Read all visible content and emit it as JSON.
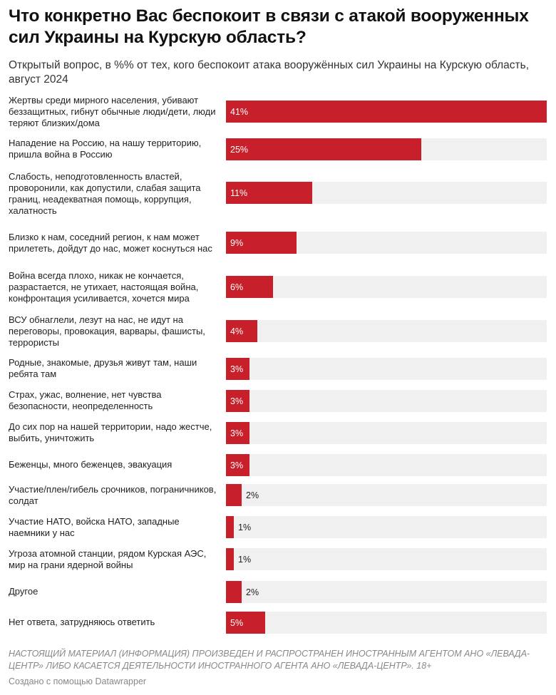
{
  "title": "Что конкретно Вас беспокоит в связи с атакой вооруженных сил Украины на Курскую область?",
  "subtitle": "Открытый вопрос, в %% от тех, кого беспокоит атака вооружённых сил Украины на Курскую область, август 2024",
  "colors": {
    "bar": "#c8202a",
    "track": "#f0f0f0"
  },
  "chart_data": {
    "type": "bar",
    "orientation": "horizontal",
    "unit": "%",
    "xlim": [
      0,
      41
    ],
    "categories": [
      "Жертвы среди мирного населения, убивают беззащитных, гибнут обычные люди/дети, люди теряют близких/дома",
      "Нападение на Россию, на нашу территорию, пришла война в Россию",
      "Слабость, неподготовленность властей, проворонили, как допустили, слабая защита границ, неадекватная помощь, коррупция, халатность",
      "Близко к нам, соседний регион, к нам может прилететь, дойдут до нас, может коснуться нас",
      "Война всегда плохо, никак не кончается, разрастается, не утихает, настоящая война, конфронтация усиливается, хочется мира",
      "ВСУ обнаглели, лезут на нас, не идут на переговоры, провокация, варвары, фашисты, террористы",
      "Родные, знакомые, друзья живут там, наши ребята там",
      "Страх, ужас, волнение, нет чувства безопасности, неопределенность",
      "До сих пор на нашей территории, надо жестче, выбить, уничтожить",
      "Беженцы, много беженцев, эвакуация",
      "Участие/плен/гибель срочников, пограничников, солдат",
      "Участие НАТО, войска НАТО, западные наемники у нас",
      "Угроза атомной станции, рядом Курская АЭС, мир на грани ядерной войны",
      "Другое",
      "Нет ответа, затрудняюсь ответить"
    ],
    "values": [
      41,
      25,
      11,
      9,
      6,
      4,
      3,
      3,
      3,
      3,
      2,
      1,
      1,
      2,
      5
    ],
    "value_labels": [
      "41%",
      "25%",
      "11%",
      "9%",
      "6%",
      "4%",
      "3%",
      "3%",
      "3%",
      "3%",
      "2%",
      "1%",
      "1%",
      "2%",
      "5%"
    ]
  },
  "footer": {
    "note": "НАСТОЯЩИЙ МАТЕРИАЛ (ИНФОРМАЦИЯ) ПРОИЗВЕДЕН И РАСПРОСТРАНЕН ИНОСТРАННЫМ АГЕНТОМ АНО «ЛЕВАДА-ЦЕНТР» ЛИБО КАСАЕТСЯ ДЕЯТЕЛЬНОСТИ ИНОСТРАННОГО АГЕНТА АНО «ЛЕВАДА-ЦЕНТР». 18+",
    "credit": "Создано с помощью Datawrapper"
  }
}
